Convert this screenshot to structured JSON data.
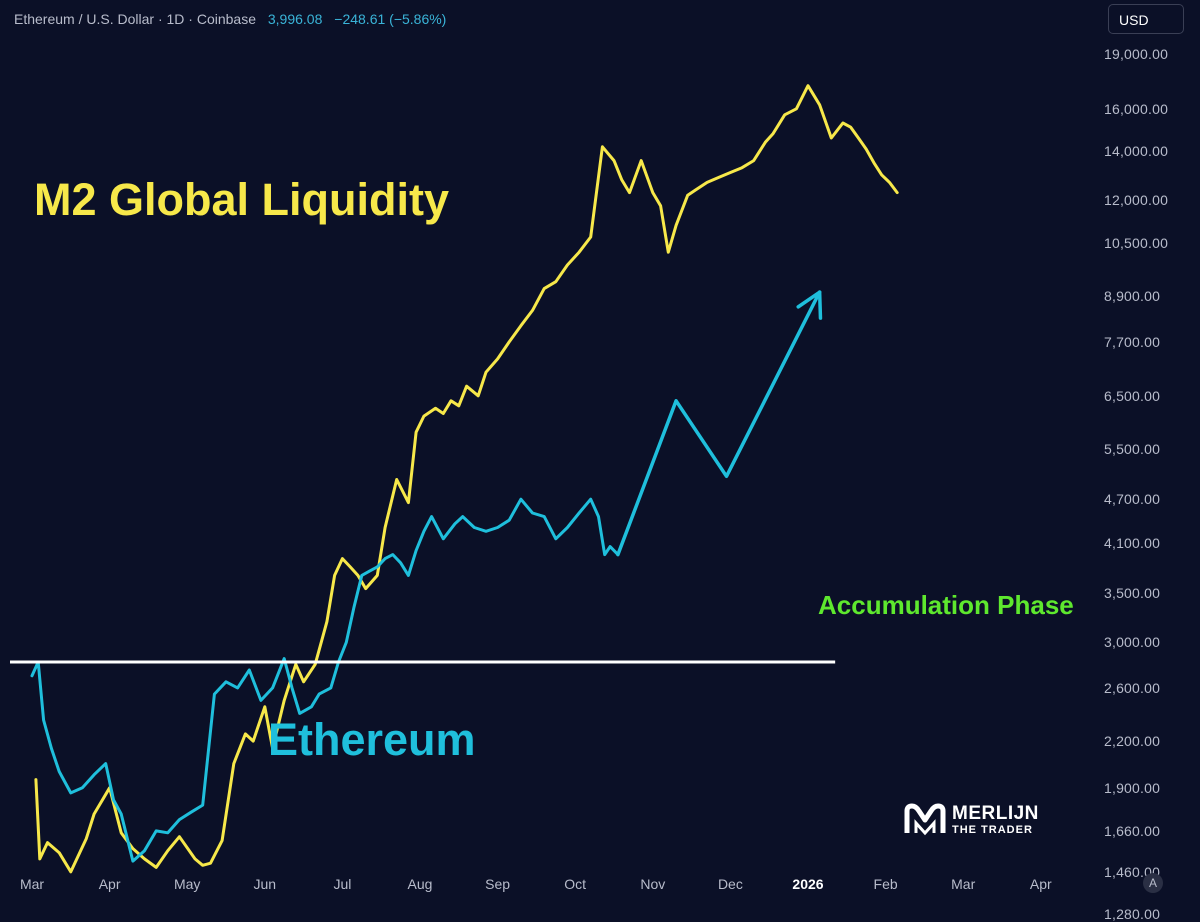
{
  "header": {
    "symbol": "Ethereum / U.S. Dollar · 1D · Coinbase",
    "price": "3,996.08",
    "change": "−248.61 (−5.86%)"
  },
  "currency_button": "USD",
  "auto_button": "A",
  "annotations": {
    "m2": "M2 Global Liquidity",
    "eth": "Ethereum",
    "accumulation": "Accumulation Phase"
  },
  "logo": {
    "main": "MERLIJN",
    "sub": "THE TRADER"
  },
  "colors": {
    "background": "#0b1027",
    "m2_line": "#f7e84a",
    "eth_line": "#1fbfdc",
    "accumulation_text": "#5ee82e",
    "accumulation_line": "#ffffff",
    "axis_text": "#b8bccb"
  },
  "chart_data": {
    "type": "line",
    "title": "Ethereum / U.S. Dollar · 1D · Coinbase",
    "y_scale": "log",
    "ylim": [
      1200,
      21000
    ],
    "y_ticks": [
      "19,000.00",
      "16,000.00",
      "14,000.00",
      "12,000.00",
      "10,500.00",
      "8,900.00",
      "7,700.00",
      "6,500.00",
      "5,500.00",
      "4,700.00",
      "4,100.00",
      "3,500.00",
      "3,000.00",
      "2,600.00",
      "2,200.00",
      "1,900.00",
      "1,660.00",
      "1,460.00",
      "1,280.00"
    ],
    "x_ticks": [
      "Mar",
      "Apr",
      "May",
      "Jun",
      "Jul",
      "Aug",
      "Sep",
      "Oct",
      "Nov",
      "Dec",
      "2026",
      "Feb",
      "Mar",
      "Apr"
    ],
    "x_unit": "months since Mar 1 2025",
    "accumulation_level": 2820,
    "accumulation_range": [
      0,
      10.35
    ],
    "series": [
      {
        "name": "M2 Global Liquidity",
        "x": [
          0.05,
          0.1,
          0.2,
          0.35,
          0.5,
          0.7,
          0.8,
          1.0,
          1.15,
          1.3,
          1.45,
          1.6,
          1.75,
          1.9,
          2.1,
          2.2,
          2.3,
          2.45,
          2.6,
          2.75,
          2.85,
          3.0,
          3.1,
          3.25,
          3.4,
          3.5,
          3.65,
          3.8,
          3.9,
          4.0,
          4.1,
          4.2,
          4.3,
          4.45,
          4.55,
          4.7,
          4.85,
          4.95,
          5.05,
          5.2,
          5.3,
          5.4,
          5.5,
          5.6,
          5.75,
          5.85,
          6.0,
          6.15,
          6.3,
          6.45,
          6.6,
          6.75,
          6.9,
          7.05,
          7.2,
          7.35,
          7.5,
          7.6,
          7.7,
          7.85,
          8.0,
          8.1,
          8.2,
          8.3,
          8.45,
          8.55,
          8.7,
          8.85,
          9.0,
          9.15,
          9.3,
          9.45,
          9.55,
          9.7,
          9.85,
          10.0,
          10.15,
          10.3,
          10.45,
          10.55,
          10.65,
          10.75,
          10.85,
          10.95,
          11.05,
          11.15
        ],
        "y": [
          1950,
          1520,
          1600,
          1550,
          1460,
          1620,
          1750,
          1900,
          1650,
          1570,
          1520,
          1480,
          1560,
          1630,
          1520,
          1490,
          1500,
          1610,
          2050,
          2250,
          2200,
          2450,
          2150,
          2500,
          2800,
          2650,
          2800,
          3200,
          3700,
          3900,
          3800,
          3700,
          3550,
          3700,
          4300,
          5000,
          4650,
          5800,
          6100,
          6250,
          6150,
          6400,
          6300,
          6700,
          6500,
          7000,
          7300,
          7700,
          8100,
          8500,
          9100,
          9300,
          9800,
          10200,
          10700,
          14200,
          13600,
          12800,
          12300,
          13600,
          12300,
          11800,
          10200,
          11100,
          12200,
          12400,
          12700,
          12900,
          13100,
          13300,
          13600,
          14400,
          14800,
          15700,
          16000,
          17200,
          16200,
          14600,
          15300,
          15100,
          14600,
          14100,
          13500,
          13000,
          12700,
          12300
        ]
      },
      {
        "name": "Ethereum",
        "x": [
          0.0,
          0.08,
          0.15,
          0.25,
          0.35,
          0.5,
          0.65,
          0.8,
          0.95,
          1.05,
          1.15,
          1.3,
          1.45,
          1.6,
          1.75,
          1.9,
          2.05,
          2.2,
          2.35,
          2.5,
          2.65,
          2.8,
          2.95,
          3.1,
          3.25,
          3.35,
          3.45,
          3.6,
          3.7,
          3.85,
          3.95,
          4.05,
          4.15,
          4.25,
          4.35,
          4.45,
          4.55,
          4.65,
          4.75,
          4.85,
          4.95,
          5.05,
          5.15,
          5.3,
          5.45,
          5.55,
          5.7,
          5.85,
          6.0,
          6.15,
          6.3,
          6.45,
          6.6,
          6.75,
          6.9,
          7.05,
          7.2,
          7.3,
          7.38,
          7.45,
          7.55
        ],
        "y": [
          2700,
          2820,
          2350,
          2150,
          2000,
          1870,
          1900,
          1980,
          2050,
          1830,
          1750,
          1510,
          1560,
          1660,
          1650,
          1720,
          1760,
          1800,
          2550,
          2650,
          2600,
          2750,
          2500,
          2600,
          2850,
          2600,
          2400,
          2450,
          2550,
          2600,
          2820,
          3000,
          3350,
          3700,
          3750,
          3800,
          3900,
          3950,
          3850,
          3700,
          4000,
          4250,
          4450,
          4150,
          4350,
          4450,
          4300,
          4250,
          4300,
          4400,
          4700,
          4500,
          4450,
          4150,
          4300,
          4500,
          4700,
          4450,
          3950,
          4050,
          3950
        ]
      },
      {
        "name": "Projection",
        "x": [
          7.55,
          8.3,
          8.95,
          10.15
        ],
        "y": [
          3950,
          6400,
          5050,
          9000
        ]
      }
    ]
  }
}
